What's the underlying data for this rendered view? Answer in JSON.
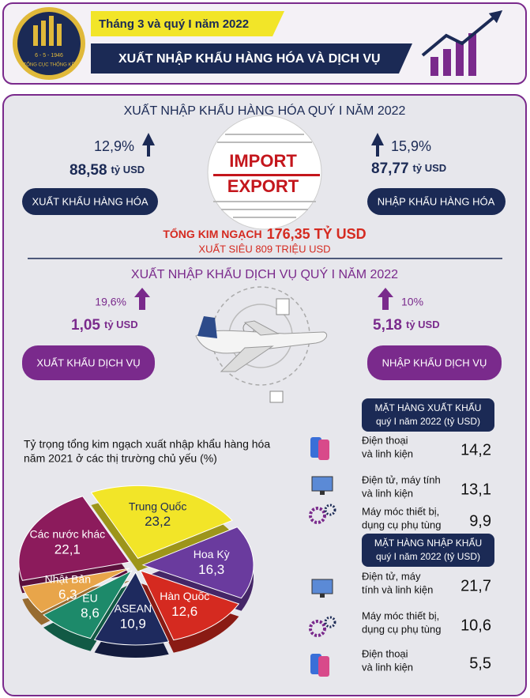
{
  "header": {
    "logo_text": [
      "TỔNG CỤC THỐNG KÊ",
      "6 - 5 - 1946"
    ],
    "date_banner": "Tháng 3 và quý I năm 2022",
    "title": "XUẤT NHẬP KHẨU HÀNG HÓA VÀ DỊCH VỤ"
  },
  "goods": {
    "title": "XUẤT NHẬP KHẨU HÀNG HÓA QUÝ I NĂM 2022",
    "image_text": [
      "IMPORT",
      "EXPORT"
    ],
    "export": {
      "change": "12,9%",
      "value": "88,58",
      "unit": "tỷ USD",
      "label": "XUẤT KHẨU HÀNG HÓA"
    },
    "import": {
      "change": "15,9%",
      "value": "87,77",
      "unit": "tỷ USD",
      "label": "NHẬP KHẨU HÀNG HÓA"
    },
    "total": {
      "label": "TỔNG KIM NGẠCH",
      "value": "176,35 TỶ USD"
    },
    "surplus": "XUẤT SIÊU 809 TRIỆU USD"
  },
  "services": {
    "title": "XUẤT NHẬP KHẨU DỊCH VỤ QUÝ I NĂM 2022",
    "export": {
      "change": "19,6%",
      "value": "1,05",
      "unit": "tỷ USD",
      "label": "XUẤT KHẨU DỊCH VỤ"
    },
    "import": {
      "change": "10%",
      "value": "5,18",
      "unit": "tỷ USD",
      "label": "NHẬP KHẨU DỊCH VỤ"
    }
  },
  "market_share": {
    "title": [
      "Tỷ trọng tổng kim ngạch xuất nhập khẩu hàng hóa",
      "năm 2021 ở các thị trường chủ yếu (%)"
    ],
    "categories": [
      "Trung Quốc",
      "Hoa Kỳ",
      "Hàn Quốc",
      "ASEAN",
      "EU",
      "Nhật Bản",
      "Các nước khác"
    ],
    "values": [
      23.2,
      16.3,
      12.6,
      10.9,
      8.6,
      6.3,
      22.1
    ],
    "value_labels": [
      "23,2",
      "16,3",
      "12,6",
      "10,9",
      "8,6",
      "6,3",
      "22,1"
    ],
    "colors": [
      "#f2e528",
      "#6a3b9e",
      "#d52a20",
      "#1e2a5e",
      "#1d8a6a",
      "#e8a54a",
      "#8c1b5c"
    ]
  },
  "top_exports": {
    "title": [
      "MẶT HÀNG XUẤT KHẨU",
      "quý I năm 2022 (tỷ USD)"
    ],
    "items": [
      {
        "name": [
          "Điện thoại",
          "và linh kiện"
        ],
        "value": "14,2"
      },
      {
        "name": [
          "Điện tử, máy tính",
          "và linh kiện"
        ],
        "value": "13,1"
      },
      {
        "name": [
          "Máy móc thiết bị,",
          "dụng cụ phụ tùng"
        ],
        "value": "9,9"
      }
    ]
  },
  "top_imports": {
    "title": [
      "MẶT HÀNG NHẬP KHẨU",
      "quý I năm 2022 (tỷ USD)"
    ],
    "items": [
      {
        "name": [
          "Điện tử, máy",
          "tính và linh kiện"
        ],
        "value": "21,7"
      },
      {
        "name": [
          "Máy móc thiết bị,",
          "dụng cụ phụ tùng"
        ],
        "value": "10,6"
      },
      {
        "name": [
          "Điện thoại",
          "và linh kiện"
        ],
        "value": "5,5"
      }
    ]
  }
}
